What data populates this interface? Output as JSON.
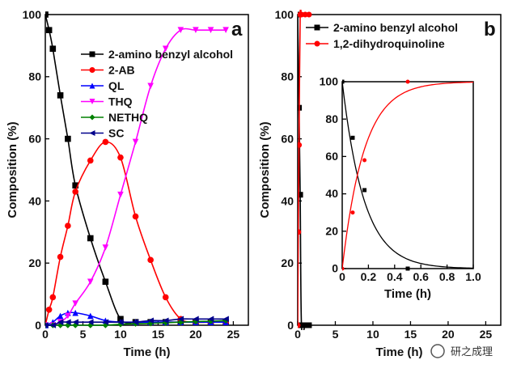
{
  "chart_data": [
    {
      "panel": "a",
      "type": "line",
      "xlabel": "Time (h)",
      "ylabel": "Composition (%)",
      "xlim": [
        0,
        27
      ],
      "ylim": [
        0,
        100
      ],
      "xticks": [
        0,
        5,
        10,
        15,
        20,
        25
      ],
      "yticks": [
        0,
        20,
        40,
        60,
        80,
        100
      ],
      "legend_position": "top-right",
      "series": [
        {
          "name": "2-amino benzyl alcohol",
          "color": "#000000",
          "marker": "square",
          "x": [
            0,
            0.5,
            1,
            2,
            3,
            4,
            6,
            8,
            10,
            12,
            14,
            16,
            18,
            20,
            22,
            24
          ],
          "y": [
            100,
            95,
            89,
            74,
            60,
            45,
            28,
            14,
            2,
            1,
            1,
            1,
            1,
            1,
            1,
            1
          ]
        },
        {
          "name": "2-AB",
          "color": "#ff0000",
          "marker": "circle",
          "x": [
            0,
            0.5,
            1,
            2,
            3,
            4,
            6,
            8,
            10,
            12,
            14,
            16,
            18,
            20,
            22,
            24
          ],
          "y": [
            0,
            5,
            9,
            22,
            32,
            43,
            53,
            59,
            54,
            35,
            21,
            9,
            2,
            1,
            1,
            1
          ]
        },
        {
          "name": "QL",
          "color": "#0000ff",
          "marker": "triangle-up",
          "x": [
            0,
            1,
            2,
            3,
            4,
            6,
            8,
            10,
            12,
            14,
            16,
            18,
            20,
            22,
            24
          ],
          "y": [
            0,
            1,
            3,
            4,
            4,
            3,
            1.5,
            1,
            1,
            1,
            1,
            1,
            1,
            1,
            1
          ]
        },
        {
          "name": "THQ",
          "color": "#ff00ff",
          "marker": "triangle-down",
          "x": [
            0,
            1,
            2,
            3,
            4,
            6,
            8,
            10,
            12,
            14,
            16,
            18,
            20,
            22,
            24
          ],
          "y": [
            0,
            0,
            1,
            3,
            7,
            14,
            25,
            42,
            59,
            77,
            89,
            95,
            95,
            95,
            95
          ]
        },
        {
          "name": "NETHQ",
          "color": "#008000",
          "marker": "diamond",
          "x": [
            0,
            1,
            2,
            3,
            4,
            6,
            8,
            10,
            12,
            14,
            16,
            18,
            20,
            22,
            24
          ],
          "y": [
            0,
            0,
            0,
            0,
            0,
            0,
            0,
            0.3,
            0.5,
            0.6,
            0.8,
            1,
            1.2,
            1.3,
            1.5
          ]
        },
        {
          "name": "SC",
          "color": "#00008b",
          "marker": "triangle-left",
          "x": [
            0,
            1,
            2,
            3,
            4,
            6,
            8,
            10,
            12,
            14,
            16,
            18,
            20,
            22,
            24
          ],
          "y": [
            0,
            0,
            1,
            1,
            1,
            1,
            1,
            1,
            1,
            1.5,
            1.5,
            2,
            2,
            2,
            2
          ]
        }
      ]
    },
    {
      "panel": "b",
      "type": "line",
      "xlabel": "Time (h)",
      "ylabel": "Composition (%)",
      "xlim": [
        0,
        27
      ],
      "ylim": [
        0,
        100
      ],
      "xticks": [
        0,
        5,
        10,
        15,
        20,
        25
      ],
      "yticks": [
        0,
        20,
        40,
        60,
        80,
        100
      ],
      "legend_position": "top-right",
      "series": [
        {
          "name": "2-amino benzyl alcohol",
          "color": "#000000",
          "marker": "square",
          "x": [
            0,
            0.17,
            0.33,
            0.5,
            1,
            1.5
          ],
          "y": [
            100,
            70,
            42,
            0,
            0,
            0
          ]
        },
        {
          "name": "1,2-dihydroquinoline",
          "color": "#ff0000",
          "marker": "circle",
          "x": [
            0,
            0.08,
            0.17,
            0.33,
            0.5,
            1,
            1.5
          ],
          "y": [
            0,
            30,
            58,
            100,
            100,
            100,
            100
          ]
        }
      ],
      "inset": {
        "xlabel": "Time (h)",
        "xlim": [
          0,
          1
        ],
        "ylim": [
          0,
          100
        ],
        "xticks": [
          "0",
          "0.2",
          "0.4",
          "0.6",
          "0.8",
          "1.0"
        ],
        "yticks": [
          "0",
          "20",
          "40",
          "60",
          "80",
          "100"
        ],
        "series": [
          {
            "name": "2-amino benzyl alcohol",
            "color": "#000000",
            "marker": "square",
            "x": [
              0,
              0.08,
              0.17,
              0.5
            ],
            "y": [
              100,
              70,
              42,
              0
            ]
          },
          {
            "name": "1,2-dihydroquinoline",
            "color": "#ff0000",
            "marker": "circle",
            "x": [
              0,
              0.08,
              0.17,
              0.5
            ],
            "y": [
              0,
              30,
              58,
              100
            ]
          }
        ]
      }
    }
  ],
  "labels": {
    "panel_a": "a",
    "panel_b": "b",
    "watermark": "研之成理"
  }
}
